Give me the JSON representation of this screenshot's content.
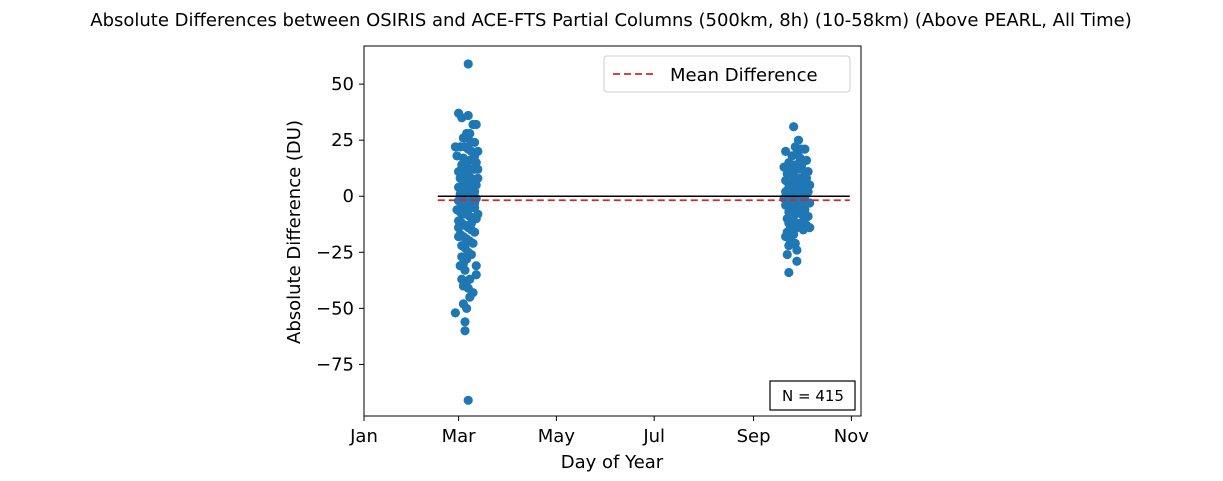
{
  "chart_data": {
    "type": "scatter",
    "title": "Absolute Differences between OSIRIS and ACE-FTS Partial Columns (500km, 8h) (10-58km) (Above PEARL, All Time)",
    "xlabel": "Day of Year",
    "ylabel": "Absolute Difference (DU)",
    "xlim": [
      1,
      311
    ],
    "ylim": [
      -98,
      67
    ],
    "x_ticks": [
      {
        "value": 1,
        "label": "Jan"
      },
      {
        "value": 60,
        "label": "Mar"
      },
      {
        "value": 121,
        "label": "May"
      },
      {
        "value": 182,
        "label": "Jul"
      },
      {
        "value": 244,
        "label": "Sep"
      },
      {
        "value": 305,
        "label": "Nov"
      }
    ],
    "y_ticks": [
      {
        "value": 50,
        "label": "50"
      },
      {
        "value": 25,
        "label": "25"
      },
      {
        "value": 0,
        "label": "0"
      },
      {
        "value": -25,
        "label": "−25"
      },
      {
        "value": -50,
        "label": "−50"
      },
      {
        "value": -75,
        "label": "−75"
      }
    ],
    "grid": false,
    "legend": {
      "position": "top-right",
      "entries": [
        "Mean Difference"
      ]
    },
    "annotation": "N = 415",
    "zero_line": {
      "y": 0,
      "x_start": 47,
      "x_end": 304,
      "color": "#000000"
    },
    "mean_line": {
      "name": "Mean Difference",
      "y": -1.8,
      "x_start": 47,
      "x_end": 304,
      "color": "#d62728",
      "style": "dashed"
    },
    "marker_color": "#1f77b4",
    "series": [
      {
        "points": [
          [
            60,
            37
          ],
          [
            62,
            35
          ],
          [
            66,
            36
          ],
          [
            69,
            32
          ],
          [
            71,
            32
          ],
          [
            65,
            28
          ],
          [
            67,
            28
          ],
          [
            63,
            26
          ],
          [
            68,
            24
          ],
          [
            70,
            24
          ],
          [
            61,
            22
          ],
          [
            64,
            22
          ],
          [
            66,
            21
          ],
          [
            68,
            20
          ],
          [
            72,
            20
          ],
          [
            59,
            18
          ],
          [
            63,
            17
          ],
          [
            67,
            16
          ],
          [
            69,
            16
          ],
          [
            71,
            15
          ],
          [
            62,
            14
          ],
          [
            65,
            13
          ],
          [
            68,
            12
          ],
          [
            70,
            12
          ],
          [
            60,
            11
          ],
          [
            64,
            10
          ],
          [
            66,
            10
          ],
          [
            72,
            8
          ],
          [
            61,
            8
          ],
          [
            63,
            7
          ],
          [
            65,
            6
          ],
          [
            67,
            6
          ],
          [
            69,
            5
          ],
          [
            71,
            5
          ],
          [
            60,
            4
          ],
          [
            62,
            3
          ],
          [
            64,
            3
          ],
          [
            66,
            2
          ],
          [
            68,
            2
          ],
          [
            70,
            2
          ],
          [
            61,
            1
          ],
          [
            63,
            0
          ],
          [
            65,
            0
          ],
          [
            67,
            0
          ],
          [
            69,
            -1
          ],
          [
            71,
            -1
          ],
          [
            60,
            -2
          ],
          [
            62,
            -3
          ],
          [
            64,
            -4
          ],
          [
            66,
            -4
          ],
          [
            68,
            -5
          ],
          [
            70,
            -5
          ],
          [
            59,
            -6
          ],
          [
            61,
            -7
          ],
          [
            63,
            -8
          ],
          [
            65,
            -8
          ],
          [
            67,
            -9
          ],
          [
            69,
            -10
          ],
          [
            71,
            -10
          ],
          [
            60,
            -11
          ],
          [
            62,
            -12
          ],
          [
            64,
            -13
          ],
          [
            66,
            -14
          ],
          [
            68,
            -15
          ],
          [
            70,
            -16
          ],
          [
            61,
            -17
          ],
          [
            63,
            -18
          ],
          [
            65,
            -19
          ],
          [
            67,
            -20
          ],
          [
            69,
            -21
          ],
          [
            64,
            -23
          ],
          [
            66,
            -25
          ],
          [
            62,
            -27
          ],
          [
            65,
            -28
          ],
          [
            63,
            -30
          ],
          [
            61,
            -31
          ],
          [
            64,
            -33
          ],
          [
            71,
            -31
          ],
          [
            71,
            -35
          ],
          [
            62,
            -37
          ],
          [
            65,
            -38
          ],
          [
            67,
            -37
          ],
          [
            63,
            -40
          ],
          [
            66,
            -41
          ],
          [
            69,
            -43
          ],
          [
            67,
            -45
          ],
          [
            63,
            -48
          ],
          [
            65,
            -50
          ],
          [
            58,
            -52
          ],
          [
            64,
            -56
          ],
          [
            64,
            -60
          ],
          [
            66,
            59
          ],
          [
            66,
            -91
          ],
          [
            58,
            22
          ],
          [
            72,
            -8
          ],
          [
            60,
            -14
          ],
          [
            68,
            -26
          ],
          [
            66,
            6
          ],
          [
            70,
            18
          ],
          [
            62,
            -22
          ],
          [
            64,
            15
          ],
          [
            68,
            -12
          ],
          [
            72,
            12
          ],
          [
            60,
            -18
          ],
          [
            66,
            -6
          ],
          [
            64,
            -2
          ],
          [
            68,
            8
          ],
          [
            62,
            10
          ],
          [
            70,
            -3
          ],
          [
            66,
            26
          ]
        ]
      },
      {
        "points": [
          [
            269,
            31
          ],
          [
            272,
            25
          ],
          [
            270,
            22
          ],
          [
            274,
            21
          ],
          [
            276,
            21
          ],
          [
            264,
            20
          ],
          [
            271,
            19
          ],
          [
            268,
            18
          ],
          [
            273,
            17
          ],
          [
            277,
            16
          ],
          [
            266,
            15
          ],
          [
            270,
            14
          ],
          [
            274,
            14
          ],
          [
            263,
            13
          ],
          [
            267,
            12
          ],
          [
            272,
            12
          ],
          [
            276,
            11
          ],
          [
            278,
            11
          ],
          [
            265,
            10
          ],
          [
            269,
            9
          ],
          [
            273,
            8
          ],
          [
            277,
            8
          ],
          [
            264,
            7
          ],
          [
            268,
            6
          ],
          [
            271,
            6
          ],
          [
            275,
            5
          ],
          [
            279,
            5
          ],
          [
            266,
            4
          ],
          [
            270,
            3
          ],
          [
            273,
            3
          ],
          [
            277,
            2
          ],
          [
            265,
            1
          ],
          [
            268,
            0
          ],
          [
            272,
            0
          ],
          [
            276,
            0
          ],
          [
            263,
            -1
          ],
          [
            267,
            -2
          ],
          [
            271,
            -2
          ],
          [
            275,
            -3
          ],
          [
            279,
            -3
          ],
          [
            264,
            -4
          ],
          [
            268,
            -5
          ],
          [
            272,
            -5
          ],
          [
            276,
            -6
          ],
          [
            266,
            -7
          ],
          [
            270,
            -8
          ],
          [
            274,
            -8
          ],
          [
            278,
            -9
          ],
          [
            265,
            -10
          ],
          [
            269,
            -11
          ],
          [
            273,
            -12
          ],
          [
            277,
            -13
          ],
          [
            267,
            -14
          ],
          [
            271,
            -14
          ],
          [
            275,
            -15
          ],
          [
            279,
            -14
          ],
          [
            265,
            -16
          ],
          [
            269,
            -17
          ],
          [
            264,
            -18
          ],
          [
            267,
            -20
          ],
          [
            270,
            -21
          ],
          [
            266,
            -22
          ],
          [
            271,
            -24
          ],
          [
            265,
            -26
          ],
          [
            271,
            -29
          ],
          [
            266,
            -34
          ],
          [
            264,
            2
          ],
          [
            274,
            -1
          ],
          [
            268,
            10
          ],
          [
            276,
            -10
          ],
          [
            270,
            -6
          ],
          [
            272,
            5
          ],
          [
            266,
            -12
          ],
          [
            278,
            2
          ],
          [
            269,
            4
          ],
          [
            273,
            -4
          ]
        ]
      }
    ]
  }
}
